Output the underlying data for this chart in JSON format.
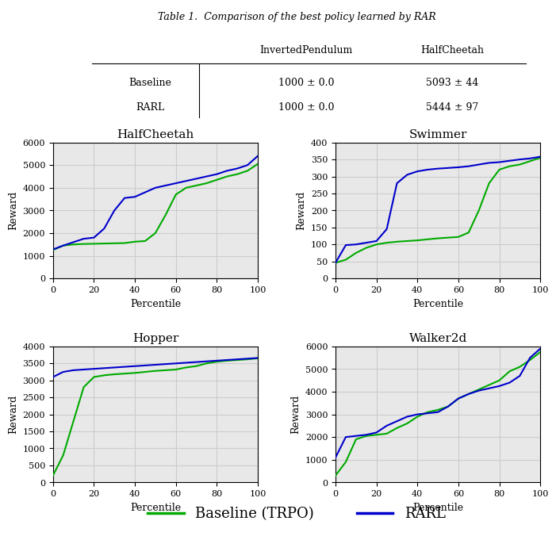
{
  "table": {
    "title": "Table 1.  Comparison of the best policy learned by RAR",
    "columns": [
      "",
      "InvertedPendulum",
      "HalfCheetah"
    ],
    "rows": [
      [
        "Baseline",
        "1000 ± 0.0",
        "5093 ± 44"
      ],
      [
        "RARL",
        "1000 ± 0.0",
        "5444 ± 97"
      ]
    ]
  },
  "plots": [
    {
      "title": "HalfCheetah",
      "ylim": [
        0,
        6000
      ],
      "yticks": [
        0,
        1000,
        2000,
        3000,
        4000,
        5000,
        6000
      ],
      "xlim": [
        0,
        100
      ],
      "xticks": [
        0,
        20,
        40,
        60,
        80,
        100
      ],
      "baseline_x": [
        0,
        5,
        10,
        15,
        20,
        25,
        30,
        35,
        40,
        45,
        50,
        55,
        60,
        65,
        70,
        75,
        80,
        85,
        90,
        95,
        100
      ],
      "baseline_y": [
        1250,
        1450,
        1500,
        1520,
        1530,
        1540,
        1550,
        1560,
        1620,
        1650,
        2000,
        2800,
        3700,
        4000,
        4100,
        4200,
        4350,
        4500,
        4600,
        4750,
        5050
      ],
      "rarl_x": [
        0,
        5,
        10,
        15,
        20,
        25,
        30,
        35,
        40,
        45,
        50,
        55,
        60,
        65,
        70,
        75,
        80,
        85,
        90,
        95,
        100
      ],
      "rarl_y": [
        1280,
        1450,
        1600,
        1750,
        1800,
        2200,
        3000,
        3550,
        3600,
        3800,
        4000,
        4100,
        4200,
        4300,
        4400,
        4500,
        4600,
        4750,
        4850,
        5000,
        5400
      ]
    },
    {
      "title": "Swimmer",
      "ylim": [
        0,
        400
      ],
      "yticks": [
        0,
        50,
        100,
        150,
        200,
        250,
        300,
        350,
        400
      ],
      "xlim": [
        0,
        100
      ],
      "xticks": [
        0,
        20,
        40,
        60,
        80,
        100
      ],
      "baseline_x": [
        0,
        5,
        10,
        15,
        20,
        25,
        30,
        35,
        40,
        45,
        50,
        55,
        60,
        65,
        70,
        75,
        80,
        85,
        90,
        95,
        100
      ],
      "baseline_y": [
        46,
        55,
        75,
        90,
        100,
        105,
        108,
        110,
        112,
        115,
        118,
        120,
        122,
        135,
        200,
        280,
        320,
        330,
        335,
        345,
        355
      ],
      "rarl_x": [
        0,
        5,
        10,
        15,
        20,
        25,
        30,
        35,
        40,
        45,
        50,
        55,
        60,
        65,
        70,
        75,
        80,
        85,
        90,
        95,
        100
      ],
      "rarl_y": [
        46,
        98,
        100,
        105,
        110,
        145,
        280,
        305,
        315,
        320,
        323,
        325,
        327,
        330,
        335,
        340,
        342,
        346,
        350,
        353,
        358
      ]
    },
    {
      "title": "Hopper",
      "ylim": [
        0,
        4000
      ],
      "yticks": [
        0,
        500,
        1000,
        1500,
        2000,
        2500,
        3000,
        3500,
        4000
      ],
      "xlim": [
        0,
        100
      ],
      "xticks": [
        0,
        20,
        40,
        60,
        80,
        100
      ],
      "baseline_x": [
        0,
        5,
        10,
        15,
        20,
        25,
        30,
        35,
        40,
        45,
        50,
        55,
        60,
        65,
        70,
        75,
        80,
        85,
        90,
        95,
        100
      ],
      "baseline_y": [
        200,
        800,
        1800,
        2800,
        3100,
        3150,
        3180,
        3200,
        3220,
        3250,
        3280,
        3300,
        3320,
        3380,
        3420,
        3500,
        3550,
        3580,
        3600,
        3620,
        3650
      ],
      "rarl_x": [
        0,
        5,
        10,
        15,
        20,
        25,
        30,
        35,
        40,
        45,
        50,
        55,
        60,
        65,
        70,
        75,
        80,
        85,
        90,
        95,
        100
      ],
      "rarl_y": [
        3100,
        3250,
        3300,
        3320,
        3340,
        3360,
        3380,
        3400,
        3420,
        3440,
        3460,
        3480,
        3500,
        3520,
        3540,
        3560,
        3580,
        3600,
        3620,
        3640,
        3660
      ]
    },
    {
      "title": "Walker2d",
      "ylim": [
        0,
        6000
      ],
      "yticks": [
        0,
        1000,
        2000,
        3000,
        4000,
        5000,
        6000
      ],
      "xlim": [
        0,
        100
      ],
      "xticks": [
        0,
        20,
        40,
        60,
        80,
        100
      ],
      "baseline_x": [
        0,
        5,
        10,
        15,
        20,
        25,
        30,
        35,
        40,
        45,
        50,
        55,
        60,
        65,
        70,
        75,
        80,
        85,
        90,
        95,
        100
      ],
      "baseline_y": [
        300,
        900,
        1900,
        2050,
        2100,
        2150,
        2400,
        2600,
        2900,
        3100,
        3200,
        3350,
        3700,
        3900,
        4100,
        4300,
        4500,
        4900,
        5100,
        5400,
        5750
      ],
      "rarl_x": [
        0,
        5,
        10,
        15,
        20,
        25,
        30,
        35,
        40,
        45,
        50,
        55,
        60,
        65,
        70,
        75,
        80,
        85,
        90,
        95,
        100
      ],
      "rarl_y": [
        1100,
        2000,
        2050,
        2100,
        2200,
        2500,
        2700,
        2900,
        3000,
        3050,
        3100,
        3350,
        3700,
        3900,
        4050,
        4150,
        4250,
        4400,
        4700,
        5500,
        5900
      ]
    }
  ],
  "legend": {
    "baseline_label": "Baseline (TRPO)",
    "rarl_label": "RARL"
  },
  "baseline_color": "#00aa00",
  "rarl_color": "#0000cc",
  "grid_color": "#cccccc",
  "bg_color": "#e8e8e8"
}
